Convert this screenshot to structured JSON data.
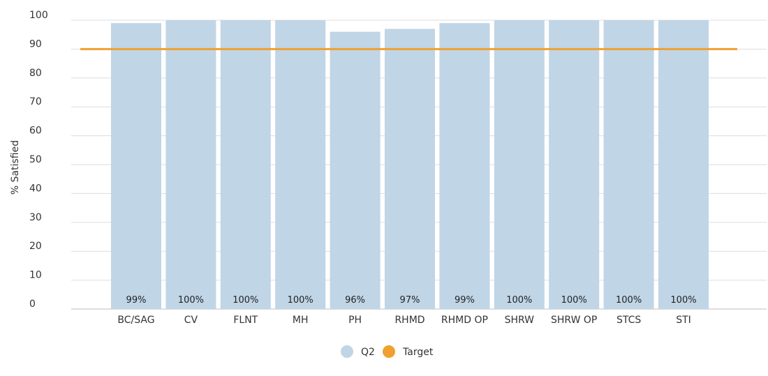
{
  "chart_data": {
    "type": "bar",
    "ylabel": "% Satisfied",
    "ylim": [
      0,
      100
    ],
    "yticks": [
      0,
      10,
      20,
      30,
      40,
      50,
      60,
      70,
      80,
      90,
      100
    ],
    "grid": true,
    "legend_position": "bottom",
    "categories": [
      "BC/SAG",
      "CV",
      "FLNT",
      "MH",
      "PH",
      "RHMD",
      "RHMD OP",
      "SHRW",
      "SHRW OP",
      "STCS",
      "STI"
    ],
    "series": [
      {
        "name": "Q2",
        "color": "#c0d5e6",
        "values": [
          99,
          100,
          100,
          100,
          96,
          97,
          99,
          100,
          100,
          100,
          100
        ],
        "labels": [
          "99%",
          "100%",
          "100%",
          "100%",
          "96%",
          "97%",
          "99%",
          "100%",
          "100%",
          "100%",
          "100%"
        ]
      }
    ],
    "target": {
      "name": "Target",
      "value": 90,
      "color": "#f0a030"
    }
  }
}
